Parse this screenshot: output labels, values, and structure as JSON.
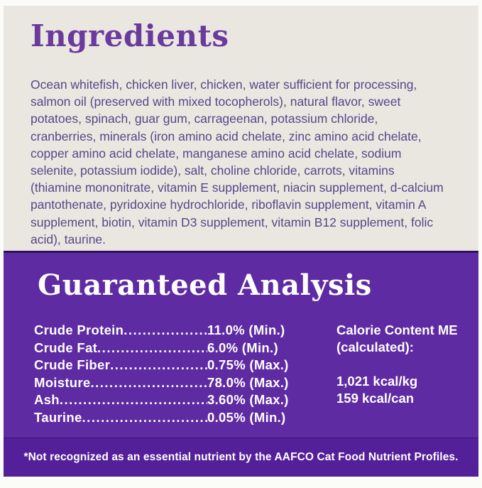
{
  "ingredients_section": {
    "title": "Ingredients",
    "text": "Ocean whitefish, chicken liver, chicken, water sufficient for processing, salmon oil (preserved with mixed tocopherols), natural flavor, sweet potatoes, spinach, guar gum, carrageenan, potassium chloride, cranberries, minerals (iron amino acid chelate, zinc amino acid chelate, copper amino acid chelate, manganese amino acid chelate, sodium selenite, potassium iodide), salt, choline chloride, carrots, vitamins (thiamine mononitrate, vitamin E supplement, niacin supplement, d-calcium pantothenate, pyridoxine hydrochloride, riboflavin supplement, vitamin A supplement, biotin, vitamin D3 supplement, vitamin B12 supplement, folic acid), taurine."
  },
  "analysis_section": {
    "title": "Guaranteed Analysis",
    "rows": [
      {
        "nutrient": "Crude Protein",
        "value": "11.0% (Min.)"
      },
      {
        "nutrient": "Crude Fat",
        "value": "6.0% (Min.)"
      },
      {
        "nutrient": "Crude Fiber",
        "value": "0.75% (Max.)"
      },
      {
        "nutrient": "Moisture",
        "value": "78.0% (Max.)"
      },
      {
        "nutrient": "Ash",
        "value": "3.60% (Max.)"
      },
      {
        "nutrient": "Taurine",
        "value": "0.05% (Min.)"
      }
    ],
    "calorie": {
      "heading": "Calorie Content ME (calculated):",
      "line1": "1,021 kcal/kg",
      "line2": "159 kcal/can"
    },
    "footnote": "*Not recognized as an essential nutrient by the AAFCO Cat Food Nutrient Profiles."
  },
  "colors": {
    "panel_gray": "#e9e7e0",
    "purple_background": "#5e2ba3",
    "footnote_band_purple": "#53209a",
    "heading_purple": "#6b3a9d",
    "body_text_purple": "#594688",
    "text_white": "#ffffff"
  }
}
